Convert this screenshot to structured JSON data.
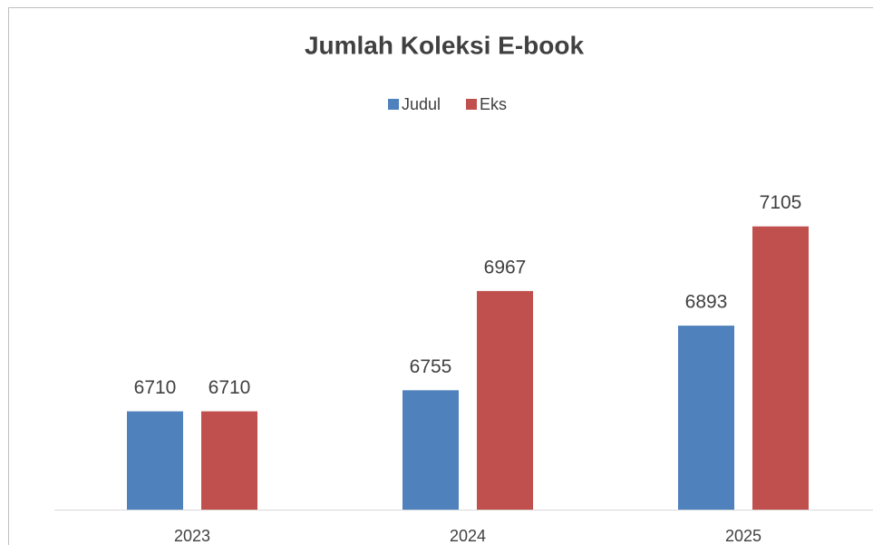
{
  "chart_data": {
    "type": "bar",
    "title": "Jumlah Koleksi E-book",
    "categories": [
      "2023",
      "2024",
      "2025"
    ],
    "series": [
      {
        "name": "Judul",
        "color": "#4f81bd",
        "values": [
          6710,
          6755,
          6893
        ]
      },
      {
        "name": "Eks",
        "color": "#c0504d",
        "values": [
          6710,
          6967,
          7105
        ]
      }
    ],
    "ylim": [
      6500,
      7300
    ],
    "legend": "top"
  }
}
